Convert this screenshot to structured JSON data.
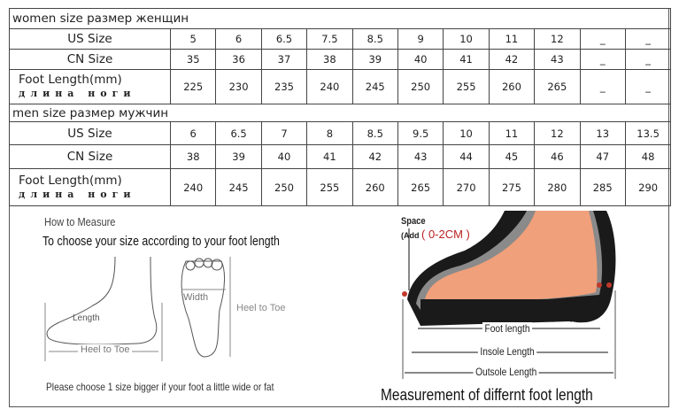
{
  "women": {
    "title": "women size  размер  женщин",
    "us_label": "US Size",
    "cn_label": "CN Size",
    "foot_label": "Foot  Length(mm)",
    "foot_label_ru": "длина ноги",
    "us": [
      "5",
      "6",
      "6.5",
      "7.5",
      "8.5",
      "9",
      "10",
      "11",
      "12",
      "_",
      "_"
    ],
    "cn": [
      "35",
      "36",
      "37",
      "38",
      "39",
      "40",
      "41",
      "42",
      "43",
      "_",
      "_"
    ],
    "foot": [
      "225",
      "230",
      "235",
      "240",
      "245",
      "250",
      "255",
      "260",
      "265",
      "_",
      "_"
    ]
  },
  "men": {
    "title": "men size   размер  мужчин",
    "us_label": "US Size",
    "cn_label": "CN Size",
    "foot_label": "Foot  Length(mm)",
    "foot_label_ru": "длина ноги",
    "us": [
      "6",
      "6.5",
      "7",
      "8",
      "8.5",
      "9.5",
      "10",
      "11",
      "12",
      "13",
      "13.5"
    ],
    "cn": [
      "38",
      "39",
      "40",
      "41",
      "42",
      "43",
      "44",
      "45",
      "46",
      "47",
      "48"
    ],
    "foot": [
      "240",
      "245",
      "250",
      "255",
      "260",
      "265",
      "270",
      "275",
      "280",
      "285",
      "290"
    ]
  },
  "measure": {
    "heading": "How to Measure",
    "subheading": "To choose your size according to your foot length",
    "length": "Length",
    "heel_to_toe": "Heel to Toe",
    "width": "Width",
    "heel_to_toe_2": "Heel to Toe",
    "note": "Please choose 1 size bigger if your foot a little wide or fat"
  },
  "diagram": {
    "space": "Space",
    "add": "(Add",
    "range": "( 0-2CM )",
    "foot_length": "Foot length",
    "insole_length": "Insole Length",
    "outsole_length": "Outsole Length",
    "caption": "Measurement of differnt foot length",
    "colors": {
      "skin": "#f0a07a",
      "sole": "#1a1a1a",
      "accent": "#c0392b"
    }
  }
}
